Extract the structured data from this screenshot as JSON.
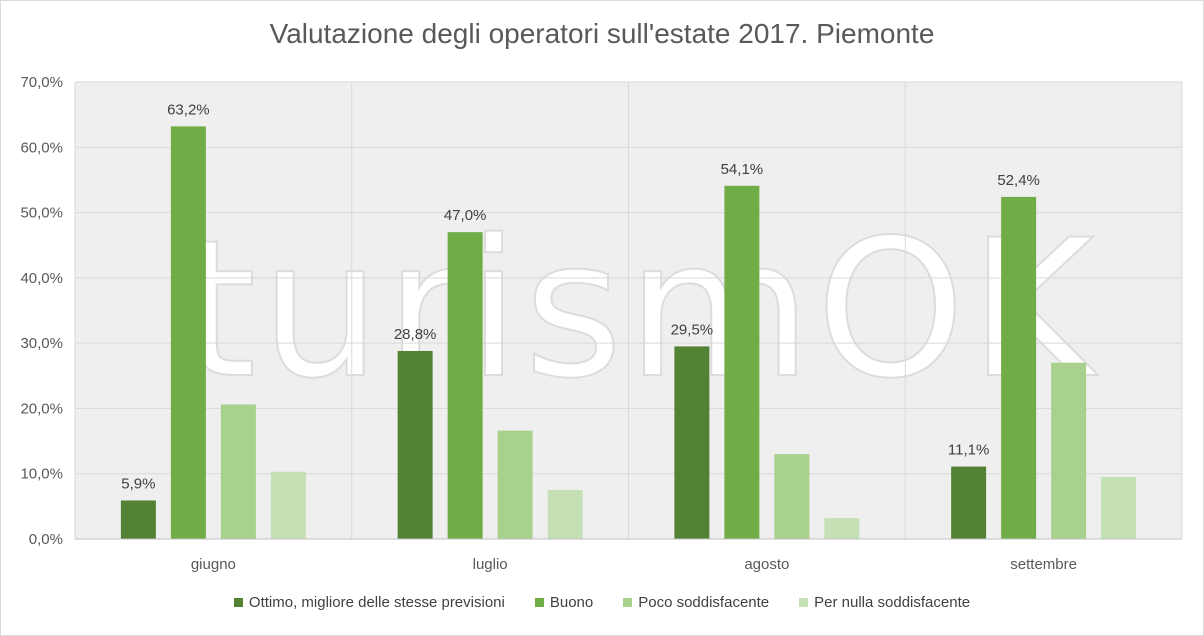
{
  "chart_data": {
    "type": "bar",
    "title": "Valutazione degli operatori sull'estate 2017. Piemonte",
    "categories": [
      "giugno",
      "luglio",
      "agosto",
      "settembre"
    ],
    "series": [
      {
        "name": "Ottimo, migliore delle stesse previsioni",
        "color": "#548235",
        "values": [
          5.9,
          28.8,
          29.5,
          11.1
        ],
        "labels": [
          "5,9%",
          "28,8%",
          "29,5%",
          "11,1%"
        ]
      },
      {
        "name": "Buono",
        "color": "#70ad47",
        "values": [
          63.2,
          47.0,
          54.1,
          52.4
        ],
        "labels": [
          "63,2%",
          "47,0%",
          "54,1%",
          "52,4%"
        ]
      },
      {
        "name": "Poco soddisfacente",
        "color": "#a9d18e",
        "values": [
          20.6,
          16.6,
          13.0,
          27.0
        ],
        "labels": []
      },
      {
        "name": "Per nulla soddisfacente",
        "color": "#c5e0b4",
        "values": [
          10.3,
          7.5,
          3.2,
          9.5
        ],
        "labels": []
      }
    ],
    "ylim": [
      0,
      70
    ],
    "yticks": [
      "0,0%",
      "10,0%",
      "20,0%",
      "30,0%",
      "40,0%",
      "50,0%",
      "60,0%",
      "70,0%"
    ],
    "grid": true,
    "legend_position": "bottom",
    "watermark": "turismOK"
  }
}
